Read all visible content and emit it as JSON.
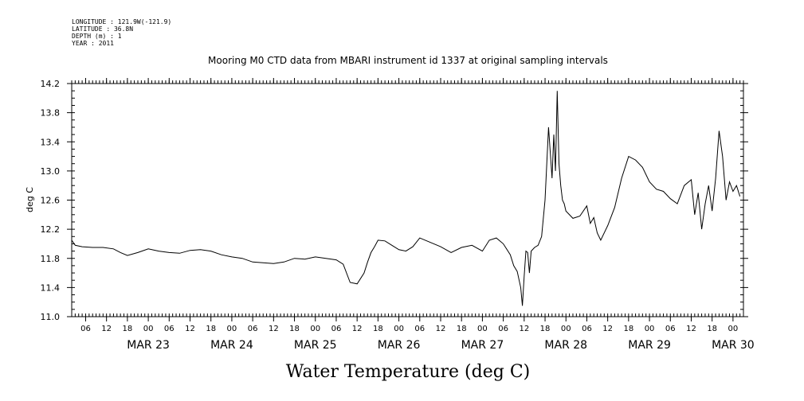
{
  "header": {
    "longitude": "LONGITUDE : 121.9W(-121.9)",
    "latitude": "LATITUDE : 36.8N",
    "depth": "DEPTH (m) : 1",
    "year": "YEAR : 2011"
  },
  "chart_data": {
    "type": "line",
    "title": "Mooring M0 CTD data from MBARI instrument id 1337 at original sampling intervals",
    "xlabel": "Water Temperature (deg C)",
    "ylabel": "deg C",
    "xlim": [
      "2011-03-22T02:00",
      "2011-03-30T03:00"
    ],
    "ylim": [
      11.0,
      14.2
    ],
    "y_ticks": [
      "11.0",
      "11.4",
      "11.8",
      "12.2",
      "12.6",
      "13.0",
      "13.4",
      "13.8",
      "14.2"
    ],
    "x_hour_ticks": [
      {
        "t": "2011-03-22T06:00",
        "label": "06"
      },
      {
        "t": "2011-03-22T12:00",
        "label": "12"
      },
      {
        "t": "2011-03-22T18:00",
        "label": "18"
      },
      {
        "t": "2011-03-23T00:00",
        "label": "00"
      },
      {
        "t": "2011-03-23T06:00",
        "label": "06"
      },
      {
        "t": "2011-03-23T12:00",
        "label": "12"
      },
      {
        "t": "2011-03-23T18:00",
        "label": "18"
      },
      {
        "t": "2011-03-24T00:00",
        "label": "00"
      },
      {
        "t": "2011-03-24T06:00",
        "label": "06"
      },
      {
        "t": "2011-03-24T12:00",
        "label": "12"
      },
      {
        "t": "2011-03-24T18:00",
        "label": "18"
      },
      {
        "t": "2011-03-25T00:00",
        "label": "00"
      },
      {
        "t": "2011-03-25T06:00",
        "label": "06"
      },
      {
        "t": "2011-03-25T12:00",
        "label": "12"
      },
      {
        "t": "2011-03-25T18:00",
        "label": "18"
      },
      {
        "t": "2011-03-26T00:00",
        "label": "00"
      },
      {
        "t": "2011-03-26T06:00",
        "label": "06"
      },
      {
        "t": "2011-03-26T12:00",
        "label": "12"
      },
      {
        "t": "2011-03-26T18:00",
        "label": "18"
      },
      {
        "t": "2011-03-27T00:00",
        "label": "00"
      },
      {
        "t": "2011-03-27T06:00",
        "label": "06"
      },
      {
        "t": "2011-03-27T12:00",
        "label": "12"
      },
      {
        "t": "2011-03-27T18:00",
        "label": "18"
      },
      {
        "t": "2011-03-28T00:00",
        "label": "00"
      },
      {
        "t": "2011-03-28T06:00",
        "label": "06"
      },
      {
        "t": "2011-03-28T12:00",
        "label": "12"
      },
      {
        "t": "2011-03-28T18:00",
        "label": "18"
      },
      {
        "t": "2011-03-29T00:00",
        "label": "00"
      },
      {
        "t": "2011-03-29T06:00",
        "label": "06"
      },
      {
        "t": "2011-03-29T12:00",
        "label": "12"
      },
      {
        "t": "2011-03-29T18:00",
        "label": "18"
      },
      {
        "t": "2011-03-30T00:00",
        "label": "00"
      }
    ],
    "x_day_labels": [
      {
        "t": "2011-03-23T00:00",
        "label": "MAR 23"
      },
      {
        "t": "2011-03-24T00:00",
        "label": "MAR 24"
      },
      {
        "t": "2011-03-25T00:00",
        "label": "MAR 25"
      },
      {
        "t": "2011-03-26T00:00",
        "label": "MAR 26"
      },
      {
        "t": "2011-03-27T00:00",
        "label": "MAR 27"
      },
      {
        "t": "2011-03-28T00:00",
        "label": "MAR 28"
      },
      {
        "t": "2011-03-29T00:00",
        "label": "MAR 29"
      },
      {
        "t": "2011-03-30T00:00",
        "label": "MAR 30"
      }
    ],
    "series": [
      {
        "x": [
          "2011-03-22T02:00",
          "2011-03-22T03:00",
          "2011-03-22T05:00",
          "2011-03-22T08:00",
          "2011-03-22T11:00",
          "2011-03-22T14:00",
          "2011-03-22T16:00",
          "2011-03-22T18:00",
          "2011-03-22T21:00",
          "2011-03-23T00:00",
          "2011-03-23T03:00",
          "2011-03-23T06:00",
          "2011-03-23T09:00",
          "2011-03-23T12:00",
          "2011-03-23T15:00",
          "2011-03-23T18:00",
          "2011-03-23T21:00",
          "2011-03-24T00:00",
          "2011-03-24T03:00",
          "2011-03-24T06:00",
          "2011-03-24T09:00",
          "2011-03-24T12:00",
          "2011-03-24T15:00",
          "2011-03-24T18:00",
          "2011-03-24T21:00",
          "2011-03-25T00:00",
          "2011-03-25T03:00",
          "2011-03-25T06:00",
          "2011-03-25T08:00",
          "2011-03-25T10:00",
          "2011-03-25T12:00",
          "2011-03-25T14:00",
          "2011-03-25T15:00",
          "2011-03-25T16:00",
          "2011-03-25T17:00",
          "2011-03-25T18:00",
          "2011-03-25T20:00",
          "2011-03-25T22:00",
          "2011-03-26T00:00",
          "2011-03-26T02:00",
          "2011-03-26T04:00",
          "2011-03-26T06:00",
          "2011-03-26T09:00",
          "2011-03-26T12:00",
          "2011-03-26T15:00",
          "2011-03-26T18:00",
          "2011-03-26T21:00",
          "2011-03-27T00:00",
          "2011-03-27T02:00",
          "2011-03-27T04:00",
          "2011-03-27T06:00",
          "2011-03-27T08:00",
          "2011-03-27T09:00",
          "2011-03-27T10:00",
          "2011-03-27T11:00",
          "2011-03-27T11:30",
          "2011-03-27T12:00",
          "2011-03-27T12:30",
          "2011-03-27T13:00",
          "2011-03-27T13:30",
          "2011-03-27T14:00",
          "2011-03-27T15:00",
          "2011-03-27T16:00",
          "2011-03-27T17:00",
          "2011-03-27T18:00",
          "2011-03-27T19:00",
          "2011-03-27T20:00",
          "2011-03-27T20:30",
          "2011-03-27T21:00",
          "2011-03-27T21:30",
          "2011-03-27T22:00",
          "2011-03-27T22:30",
          "2011-03-27T23:00",
          "2011-03-27T23:30",
          "2011-03-28T00:00",
          "2011-03-28T02:00",
          "2011-03-28T04:00",
          "2011-03-28T06:00",
          "2011-03-28T07:00",
          "2011-03-28T08:00",
          "2011-03-28T09:00",
          "2011-03-28T10:00",
          "2011-03-28T12:00",
          "2011-03-28T14:00",
          "2011-03-28T16:00",
          "2011-03-28T18:00",
          "2011-03-28T20:00",
          "2011-03-28T22:00",
          "2011-03-29T00:00",
          "2011-03-29T02:00",
          "2011-03-29T04:00",
          "2011-03-29T06:00",
          "2011-03-29T08:00",
          "2011-03-29T10:00",
          "2011-03-29T12:00",
          "2011-03-29T13:00",
          "2011-03-29T14:00",
          "2011-03-29T15:00",
          "2011-03-29T16:00",
          "2011-03-29T17:00",
          "2011-03-29T18:00",
          "2011-03-29T19:00",
          "2011-03-29T20:00",
          "2011-03-29T21:00",
          "2011-03-29T22:00",
          "2011-03-29T23:00",
          "2011-03-30T00:00",
          "2011-03-30T01:00",
          "2011-03-30T02:00"
        ],
        "values": [
          12.05,
          11.98,
          11.96,
          11.95,
          11.95,
          11.93,
          11.88,
          11.84,
          11.88,
          11.93,
          11.9,
          11.88,
          11.87,
          11.91,
          11.92,
          11.9,
          11.85,
          11.82,
          11.8,
          11.75,
          11.74,
          11.73,
          11.75,
          11.8,
          11.79,
          11.82,
          11.8,
          11.78,
          11.72,
          11.47,
          11.45,
          11.6,
          11.75,
          11.88,
          11.96,
          12.05,
          12.04,
          11.98,
          11.92,
          11.9,
          11.96,
          12.08,
          12.02,
          11.96,
          11.88,
          11.95,
          11.98,
          11.9,
          12.05,
          12.08,
          12.0,
          11.85,
          11.7,
          11.62,
          11.4,
          11.15,
          11.55,
          11.9,
          11.88,
          11.6,
          11.9,
          11.95,
          11.98,
          12.1,
          12.6,
          13.6,
          12.9,
          13.5,
          13.0,
          14.1,
          13.1,
          12.8,
          12.6,
          12.55,
          12.45,
          12.35,
          12.38,
          12.52,
          12.28,
          12.36,
          12.15,
          12.05,
          12.25,
          12.5,
          12.9,
          13.2,
          13.15,
          13.05,
          12.85,
          12.75,
          12.72,
          12.62,
          12.55,
          12.8,
          12.88,
          12.4,
          12.7,
          12.2,
          12.55,
          12.8,
          12.45,
          12.9,
          13.55,
          13.2,
          12.6,
          12.85,
          12.72,
          12.8,
          12.65
        ]
      }
    ],
    "grid": false
  }
}
